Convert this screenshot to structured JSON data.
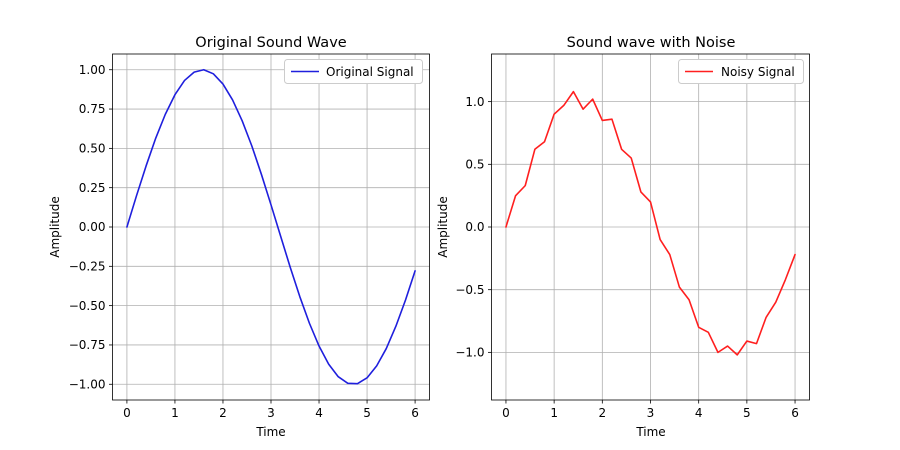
{
  "chart_data": [
    {
      "type": "line",
      "title": "Original Sound Wave",
      "xlabel": "Time",
      "ylabel": "Amplitude",
      "xlim": [
        -0.3,
        6.3
      ],
      "ylim": [
        -1.1,
        1.1
      ],
      "xticks": [
        0,
        1,
        2,
        3,
        4,
        5,
        6
      ],
      "yticks": [
        1.0,
        0.75,
        0.5,
        0.25,
        0.0,
        -0.25,
        -0.5,
        -0.75,
        -1.0
      ],
      "ytick_labels": [
        "1.00",
        "0.75",
        "0.50",
        "0.25",
        "0.00",
        "−0.25",
        "−0.50",
        "−0.75",
        "−1.00"
      ],
      "xtick_labels": [
        "0",
        "1",
        "2",
        "3",
        "4",
        "5",
        "6"
      ],
      "grid": true,
      "legend_position": "top-right",
      "series": [
        {
          "name": "Original Signal",
          "color": "#1f1fdd",
          "x": [
            0.0,
            0.2,
            0.4,
            0.6,
            0.8,
            1.0,
            1.2,
            1.4,
            1.6,
            1.8,
            2.0,
            2.2,
            2.4,
            2.6,
            2.8,
            3.0,
            3.2,
            3.4,
            3.6,
            3.8,
            4.0,
            4.2,
            4.4,
            4.6,
            4.8,
            5.0,
            5.2,
            5.4,
            5.6,
            5.8,
            6.0
          ],
          "y": [
            0.0,
            0.199,
            0.389,
            0.565,
            0.717,
            0.841,
            0.932,
            0.985,
            1.0,
            0.974,
            0.909,
            0.808,
            0.675,
            0.516,
            0.335,
            0.141,
            -0.058,
            -0.256,
            -0.443,
            -0.612,
            -0.757,
            -0.872,
            -0.952,
            -0.994,
            -0.996,
            -0.959,
            -0.883,
            -0.773,
            -0.631,
            -0.465,
            -0.279
          ]
        }
      ]
    },
    {
      "type": "line",
      "title": "Sound wave with Noise",
      "xlabel": "Time",
      "ylabel": "Amplitude",
      "xlim": [
        -0.3,
        6.3
      ],
      "ylim": [
        -1.38,
        1.38
      ],
      "xticks": [
        0,
        1,
        2,
        3,
        4,
        5,
        6
      ],
      "yticks": [
        1.0,
        0.5,
        0.0,
        -0.5,
        -1.0
      ],
      "ytick_labels": [
        "1.0",
        "0.5",
        "0.0",
        "−0.5",
        "−1.0"
      ],
      "xtick_labels": [
        "0",
        "1",
        "2",
        "3",
        "4",
        "5",
        "6"
      ],
      "grid": true,
      "legend_position": "top-right",
      "series": [
        {
          "name": "Noisy Signal",
          "color": "#ff1f1f",
          "x": [
            0.0,
            0.2,
            0.4,
            0.6,
            0.8,
            1.0,
            1.2,
            1.4,
            1.6,
            1.8,
            2.0,
            2.2,
            2.4,
            2.6,
            2.8,
            3.0,
            3.2,
            3.4,
            3.6,
            3.8,
            4.0,
            4.2,
            4.4,
            4.6,
            4.8,
            5.0,
            5.2,
            5.4,
            5.6,
            5.8,
            6.0
          ],
          "y": [
            0.0,
            0.25,
            0.33,
            0.62,
            0.68,
            0.9,
            0.97,
            1.08,
            0.94,
            1.02,
            0.85,
            0.86,
            0.62,
            0.55,
            0.28,
            0.2,
            -0.1,
            -0.22,
            -0.48,
            -0.58,
            -0.8,
            -0.84,
            -1.0,
            -0.95,
            -1.02,
            -0.91,
            -0.93,
            -0.72,
            -0.6,
            -0.42,
            -0.22
          ]
        }
      ]
    }
  ]
}
